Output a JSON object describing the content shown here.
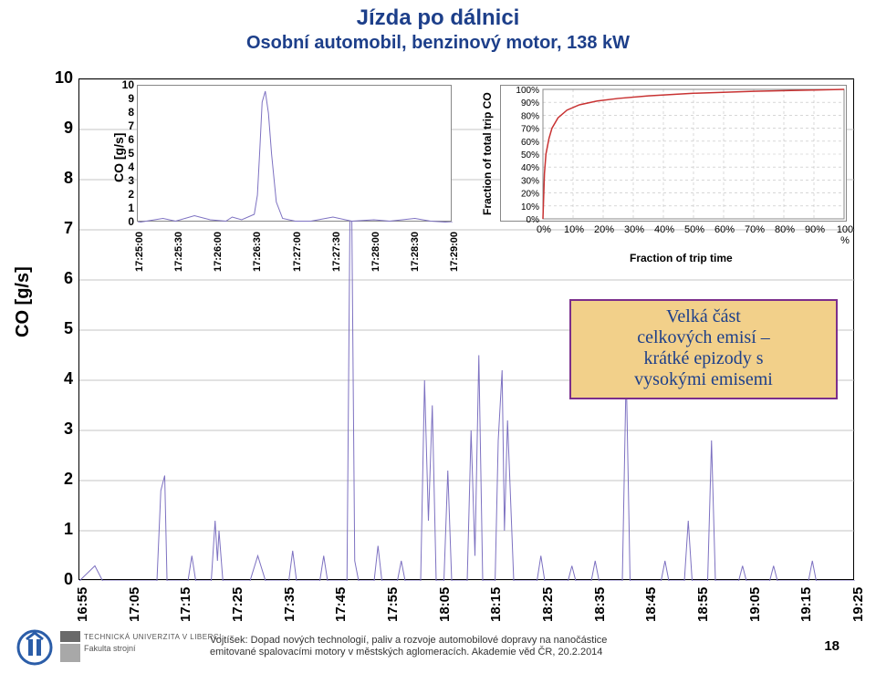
{
  "title": {
    "line1": "Jízda po dálnici",
    "line2": "Osobní automobil, benzinový motor, 138 kW",
    "color": "#1d3f8a"
  },
  "main_chart": {
    "type": "line",
    "ylabel": "CO [g/s]",
    "ylim": [
      0,
      10
    ],
    "ytick_step": 1,
    "x_category_labels": [
      "16:55",
      "17:05",
      "17:15",
      "17:25",
      "17:35",
      "17:45",
      "17:55",
      "18:05",
      "18:15",
      "18:25",
      "18:35",
      "18:45",
      "18:55",
      "19:05",
      "19:15",
      "19:25"
    ],
    "grid_color": "#b0b0b0",
    "line_color": "#7d71c1",
    "line_width": 1,
    "background_color": "#ffffff",
    "series": [
      {
        "t": 0.0,
        "v": 0.0
      },
      {
        "t": 0.02,
        "v": 0.3
      },
      {
        "t": 0.03,
        "v": 0.0
      },
      {
        "t": 0.1,
        "v": 0.0
      },
      {
        "t": 0.105,
        "v": 1.8
      },
      {
        "t": 0.11,
        "v": 2.1
      },
      {
        "t": 0.113,
        "v": 0.0
      },
      {
        "t": 0.14,
        "v": 0.0
      },
      {
        "t": 0.145,
        "v": 0.5
      },
      {
        "t": 0.15,
        "v": 0.0
      },
      {
        "t": 0.17,
        "v": 0.0
      },
      {
        "t": 0.175,
        "v": 1.2
      },
      {
        "t": 0.178,
        "v": 0.4
      },
      {
        "t": 0.18,
        "v": 1.0
      },
      {
        "t": 0.185,
        "v": 0.0
      },
      {
        "t": 0.22,
        "v": 0.0
      },
      {
        "t": 0.23,
        "v": 0.5
      },
      {
        "t": 0.24,
        "v": 0.0
      },
      {
        "t": 0.27,
        "v": 0.0
      },
      {
        "t": 0.275,
        "v": 0.6
      },
      {
        "t": 0.28,
        "v": 0.0
      },
      {
        "t": 0.31,
        "v": 0.0
      },
      {
        "t": 0.315,
        "v": 0.5
      },
      {
        "t": 0.32,
        "v": 0.0
      },
      {
        "t": 0.345,
        "v": 0.0
      },
      {
        "t": 0.35,
        "v": 9.5
      },
      {
        "t": 0.353,
        "v": 4.0
      },
      {
        "t": 0.355,
        "v": 0.4
      },
      {
        "t": 0.36,
        "v": 0.0
      },
      {
        "t": 0.38,
        "v": 0.0
      },
      {
        "t": 0.385,
        "v": 0.7
      },
      {
        "t": 0.39,
        "v": 0.0
      },
      {
        "t": 0.41,
        "v": 0.0
      },
      {
        "t": 0.415,
        "v": 0.4
      },
      {
        "t": 0.42,
        "v": 0.0
      },
      {
        "t": 0.44,
        "v": 0.0
      },
      {
        "t": 0.445,
        "v": 4.0
      },
      {
        "t": 0.45,
        "v": 1.2
      },
      {
        "t": 0.455,
        "v": 3.5
      },
      {
        "t": 0.46,
        "v": 0.0
      },
      {
        "t": 0.47,
        "v": 0.0
      },
      {
        "t": 0.475,
        "v": 2.2
      },
      {
        "t": 0.48,
        "v": 0.0
      },
      {
        "t": 0.5,
        "v": 0.0
      },
      {
        "t": 0.505,
        "v": 3.0
      },
      {
        "t": 0.51,
        "v": 0.5
      },
      {
        "t": 0.515,
        "v": 4.5
      },
      {
        "t": 0.52,
        "v": 0.0
      },
      {
        "t": 0.536,
        "v": 0.0
      },
      {
        "t": 0.54,
        "v": 2.8
      },
      {
        "t": 0.545,
        "v": 4.2
      },
      {
        "t": 0.548,
        "v": 1.0
      },
      {
        "t": 0.552,
        "v": 3.2
      },
      {
        "t": 0.56,
        "v": 0.0
      },
      {
        "t": 0.59,
        "v": 0.0
      },
      {
        "t": 0.595,
        "v": 0.5
      },
      {
        "t": 0.6,
        "v": 0.0
      },
      {
        "t": 0.63,
        "v": 0.0
      },
      {
        "t": 0.635,
        "v": 0.3
      },
      {
        "t": 0.64,
        "v": 0.0
      },
      {
        "t": 0.66,
        "v": 0.0
      },
      {
        "t": 0.665,
        "v": 0.4
      },
      {
        "t": 0.67,
        "v": 0.0
      },
      {
        "t": 0.7,
        "v": 0.0
      },
      {
        "t": 0.705,
        "v": 4.2
      },
      {
        "t": 0.71,
        "v": 0.0
      },
      {
        "t": 0.75,
        "v": 0.0
      },
      {
        "t": 0.755,
        "v": 0.4
      },
      {
        "t": 0.76,
        "v": 0.0
      },
      {
        "t": 0.78,
        "v": 0.0
      },
      {
        "t": 0.785,
        "v": 1.2
      },
      {
        "t": 0.79,
        "v": 0.0
      },
      {
        "t": 0.81,
        "v": 0.0
      },
      {
        "t": 0.815,
        "v": 2.8
      },
      {
        "t": 0.82,
        "v": 0.0
      },
      {
        "t": 0.85,
        "v": 0.0
      },
      {
        "t": 0.855,
        "v": 0.3
      },
      {
        "t": 0.86,
        "v": 0.0
      },
      {
        "t": 0.89,
        "v": 0.0
      },
      {
        "t": 0.895,
        "v": 0.3
      },
      {
        "t": 0.9,
        "v": 0.0
      },
      {
        "t": 0.94,
        "v": 0.0
      },
      {
        "t": 0.945,
        "v": 0.4
      },
      {
        "t": 0.95,
        "v": 0.0
      },
      {
        "t": 1.0,
        "v": 0.0
      }
    ]
  },
  "inset_chart": {
    "type": "line",
    "ylabel": "CO [g/s]",
    "ylim": [
      0,
      10
    ],
    "yticks": [
      0,
      1,
      2,
      3,
      4,
      5,
      6,
      7,
      8,
      9,
      10
    ],
    "x_labels": [
      "17:25:00",
      "17:25:30",
      "17:26:00",
      "17:26:30",
      "17:27:00",
      "17:27:30",
      "17:28:00",
      "17:28:30",
      "17:29:00"
    ],
    "line_color": "#7d71c1",
    "line_width": 1,
    "series": [
      {
        "t": 0.0,
        "v": 0.0
      },
      {
        "t": 0.08,
        "v": 0.3
      },
      {
        "t": 0.12,
        "v": 0.1
      },
      {
        "t": 0.18,
        "v": 0.5
      },
      {
        "t": 0.23,
        "v": 0.2
      },
      {
        "t": 0.28,
        "v": 0.1
      },
      {
        "t": 0.3,
        "v": 0.4
      },
      {
        "t": 0.33,
        "v": 0.2
      },
      {
        "t": 0.37,
        "v": 0.6
      },
      {
        "t": 0.38,
        "v": 2.0
      },
      {
        "t": 0.388,
        "v": 5.5
      },
      {
        "t": 0.395,
        "v": 8.8
      },
      {
        "t": 0.405,
        "v": 9.6
      },
      {
        "t": 0.415,
        "v": 8.0
      },
      {
        "t": 0.425,
        "v": 5.0
      },
      {
        "t": 0.44,
        "v": 1.5
      },
      {
        "t": 0.46,
        "v": 0.3
      },
      {
        "t": 0.5,
        "v": 0.1
      },
      {
        "t": 0.55,
        "v": 0.1
      },
      {
        "t": 0.62,
        "v": 0.4
      },
      {
        "t": 0.68,
        "v": 0.1
      },
      {
        "t": 0.75,
        "v": 0.2
      },
      {
        "t": 0.8,
        "v": 0.1
      },
      {
        "t": 0.88,
        "v": 0.3
      },
      {
        "t": 0.93,
        "v": 0.1
      },
      {
        "t": 1.0,
        "v": 0.0
      }
    ]
  },
  "cdf_chart": {
    "type": "line",
    "ylabel": "Fraction of total trip CO",
    "xlabel": "Fraction of trip time",
    "ylim": [
      0,
      100
    ],
    "ytick_step": 10,
    "xlim": [
      0,
      100
    ],
    "xtick_step": 10,
    "y_tick_labels": [
      "0%",
      "10%",
      "20%",
      "30%",
      "40%",
      "50%",
      "60%",
      "70%",
      "80%",
      "90%",
      "100%"
    ],
    "x_tick_labels": [
      "0%",
      "10%",
      "20%",
      "30%",
      "40%",
      "50%",
      "60%",
      "70%",
      "80%",
      "90%",
      "100\n%"
    ],
    "grid_color": "#c0c0c0",
    "line_color": "#c83232",
    "line_width": 1.5,
    "series": [
      {
        "x": 0,
        "y": 0
      },
      {
        "x": 0.5,
        "y": 35
      },
      {
        "x": 1,
        "y": 50
      },
      {
        "x": 2,
        "y": 62
      },
      {
        "x": 3,
        "y": 70
      },
      {
        "x": 5,
        "y": 78
      },
      {
        "x": 8,
        "y": 84
      },
      {
        "x": 12,
        "y": 88
      },
      {
        "x": 18,
        "y": 91
      },
      {
        "x": 25,
        "y": 93
      },
      {
        "x": 35,
        "y": 95
      },
      {
        "x": 50,
        "y": 97
      },
      {
        "x": 70,
        "y": 98.5
      },
      {
        "x": 90,
        "y": 99.5
      },
      {
        "x": 100,
        "y": 100
      }
    ]
  },
  "callout": {
    "text_lines": [
      "Velká část",
      "celkových emisí –",
      "krátké epizody s",
      "vysokými emisemi"
    ],
    "border_color": "#7b2e8c",
    "background_color": "#f2d08a",
    "text_color": "#1d3f8a",
    "font_family": "Comic Sans MS, cursive"
  },
  "footer": {
    "line1": "Vojtíšek: Dopad nových technologií, paliv a rozvoje automobilové dopravy na nanočástice",
    "line2": "emitované spalovacími motory v městských aglomeracích. Akademie věd ČR, 20.2.2014",
    "page": "18",
    "tul_text1": "TECHNICKÁ UNIVERZITA V LIBERCI",
    "tul_text2": "Fakulta strojní",
    "ctu_color": "#2b5da8"
  }
}
